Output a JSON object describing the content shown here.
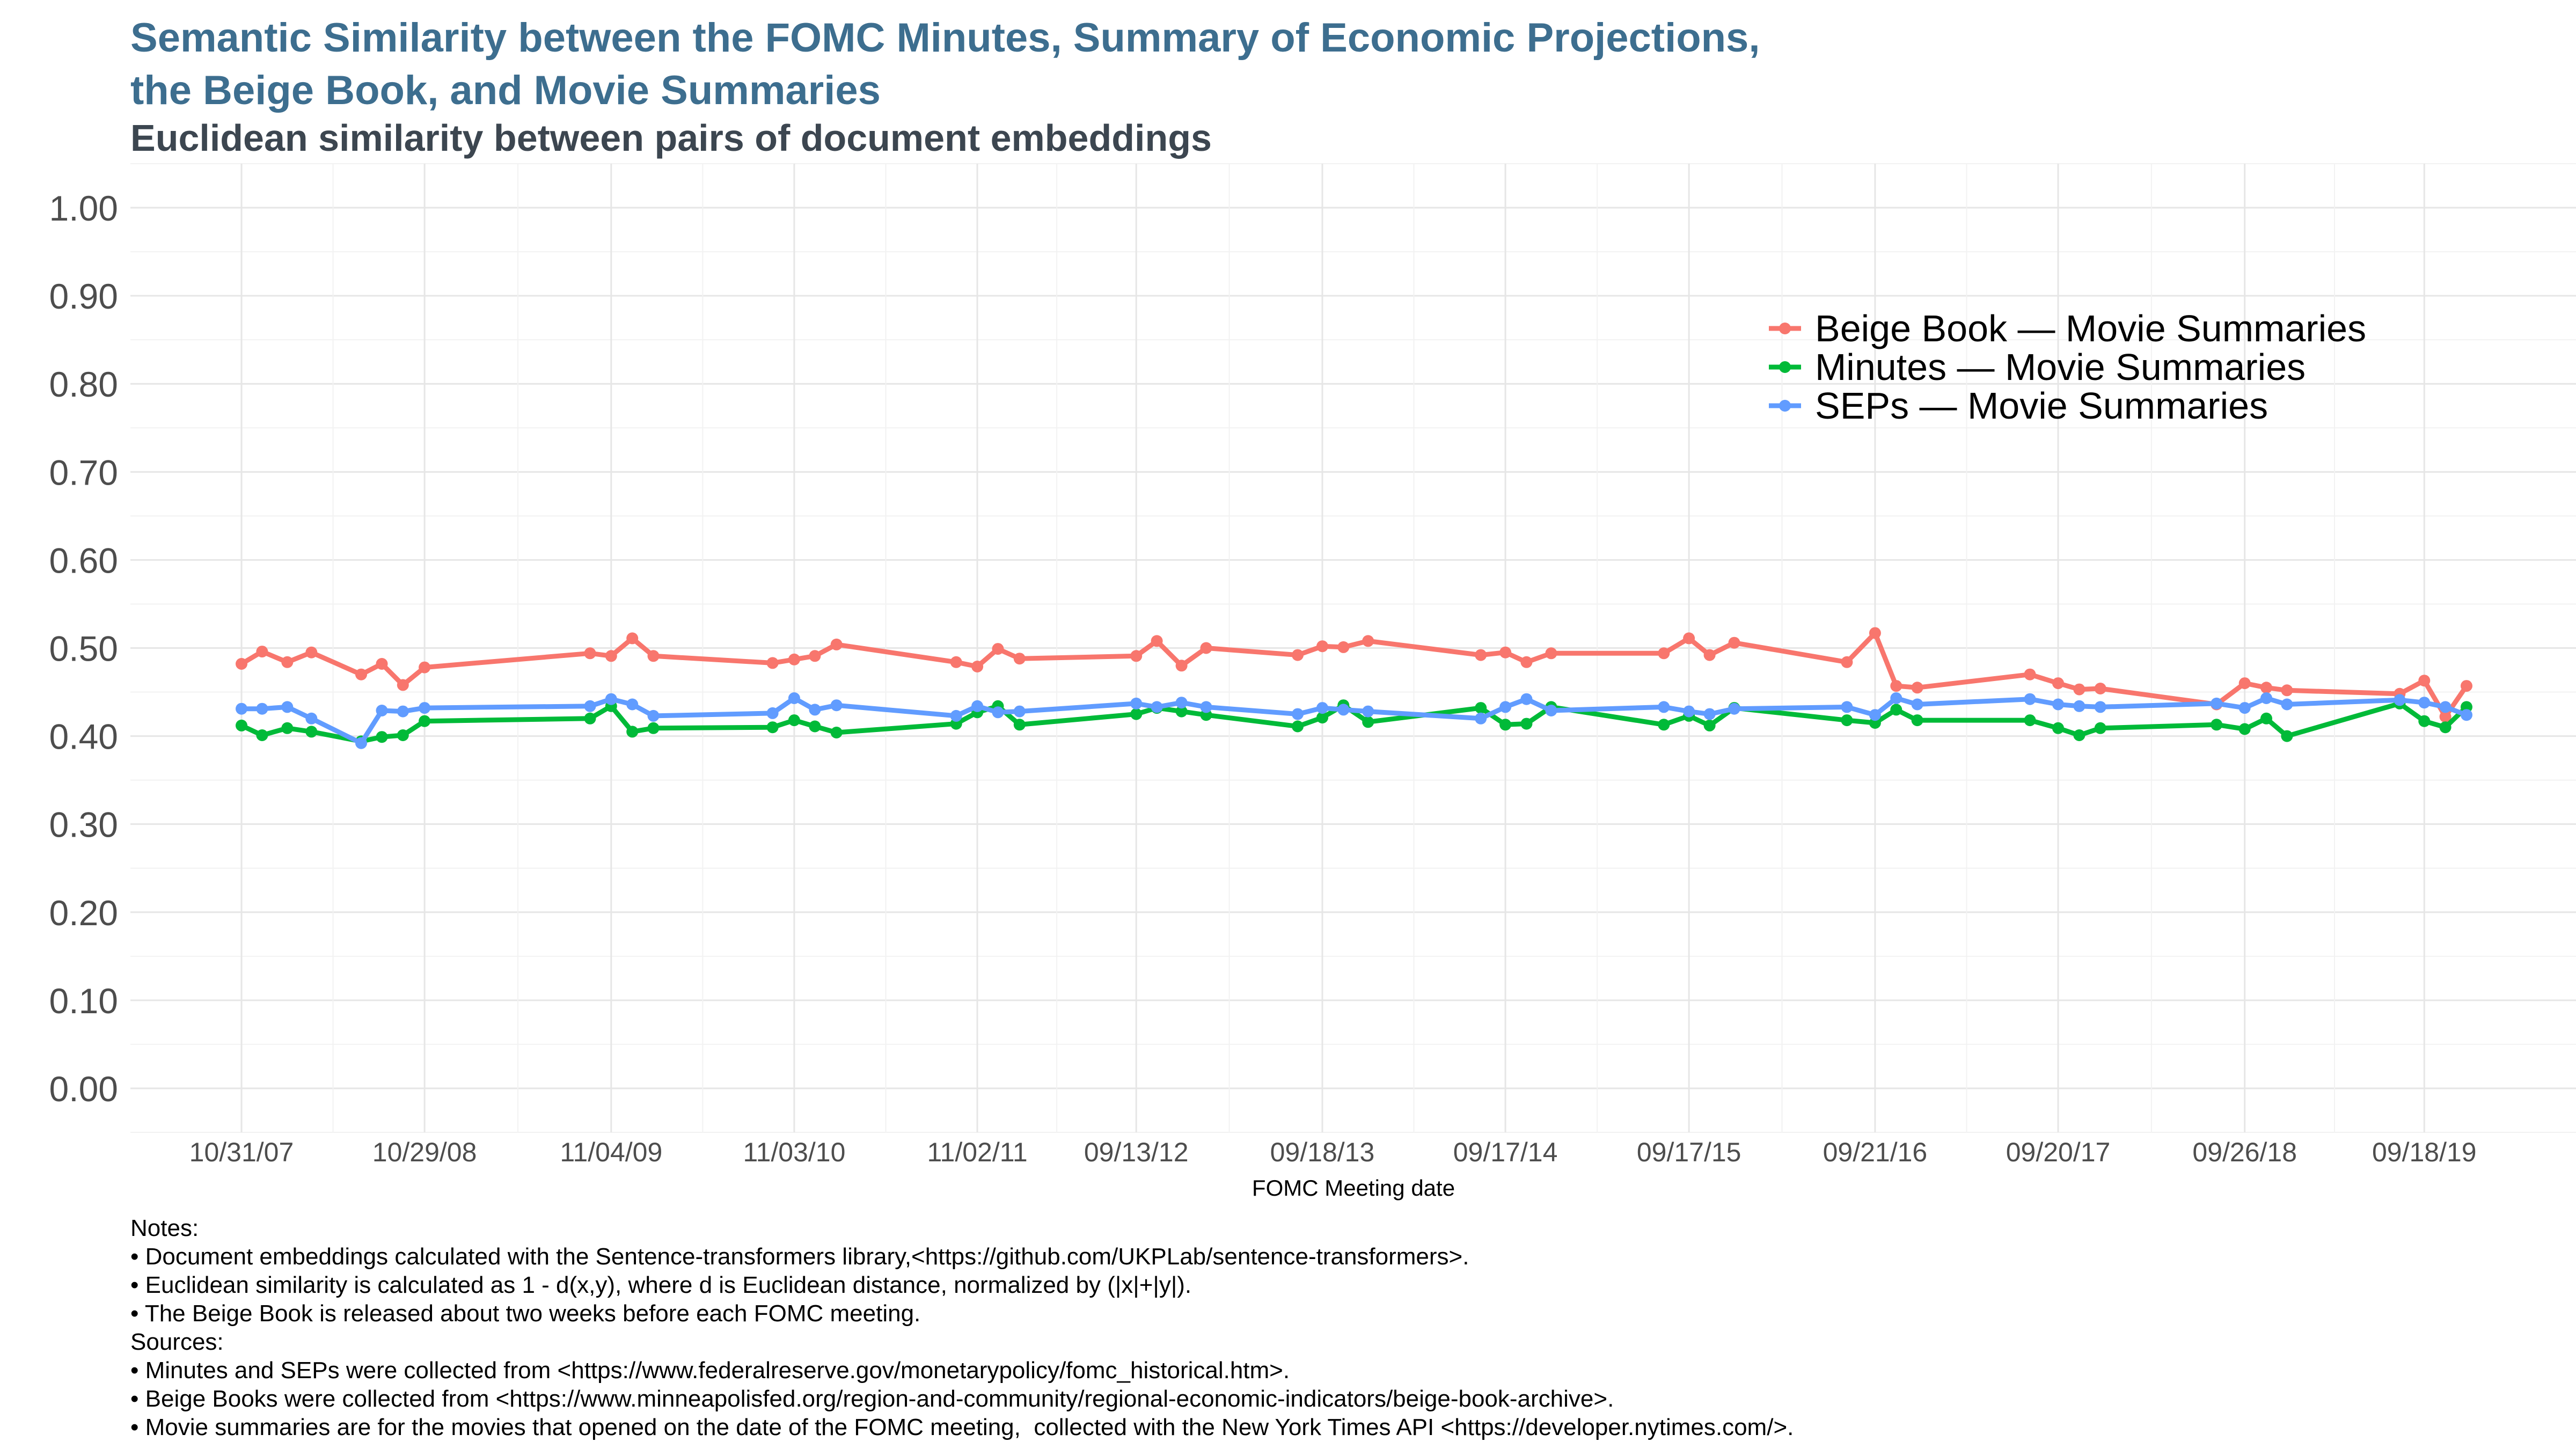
{
  "title_lines": [
    "Semantic Similarity between the FOMC Minutes, Summary of Economic Projections,",
    "the Beige Book, and Movie Summaries"
  ],
  "subtitle": "Euclidean similarity between pairs of document embeddings",
  "chart_data": {
    "type": "line",
    "xlabel": "FOMC Meeting date",
    "ylabel": "",
    "ylim": [
      -0.05,
      1.05
    ],
    "y_ticks": [
      "0.00",
      "0.10",
      "0.20",
      "0.30",
      "0.40",
      "0.50",
      "0.60",
      "0.70",
      "0.80",
      "0.90",
      "1.00"
    ],
    "x_tick_labels": [
      "10/31/07",
      "10/29/08",
      "11/04/09",
      "11/03/10",
      "11/02/11",
      "09/13/12",
      "09/18/13",
      "09/17/14",
      "09/17/15",
      "09/21/16",
      "09/20/17",
      "09/26/18",
      "09/18/19"
    ],
    "legend_position": "top-right",
    "grid": true,
    "series": [
      {
        "name": "Beige Book — Movie Summaries",
        "color": "#f8766d",
        "points": [
          [
            "2007-10-31",
            0.482
          ],
          [
            "2007-12-11",
            0.496
          ],
          [
            "2008-01-30",
            0.484
          ],
          [
            "2008-03-18",
            0.495
          ],
          [
            "2008-06-25",
            0.47
          ],
          [
            "2008-08-05",
            0.482
          ],
          [
            "2008-09-16",
            0.458
          ],
          [
            "2008-10-29",
            0.478
          ],
          [
            "2009-09-23",
            0.494
          ],
          [
            "2009-11-04",
            0.491
          ],
          [
            "2009-12-16",
            0.511
          ],
          [
            "2010-01-27",
            0.491
          ],
          [
            "2010-09-21",
            0.483
          ],
          [
            "2010-11-03",
            0.487
          ],
          [
            "2010-12-14",
            0.491
          ],
          [
            "2011-01-26",
            0.504
          ],
          [
            "2011-09-21",
            0.484
          ],
          [
            "2011-11-02",
            0.479
          ],
          [
            "2011-12-13",
            0.499
          ],
          [
            "2012-01-25",
            0.488
          ],
          [
            "2012-09-13",
            0.491
          ],
          [
            "2012-10-24",
            0.508
          ],
          [
            "2012-12-12",
            0.48
          ],
          [
            "2013-01-30",
            0.5
          ],
          [
            "2013-07-31",
            0.492
          ],
          [
            "2013-09-18",
            0.502
          ],
          [
            "2013-10-30",
            0.501
          ],
          [
            "2013-12-18",
            0.508
          ],
          [
            "2014-07-30",
            0.492
          ],
          [
            "2014-09-17",
            0.495
          ],
          [
            "2014-10-29",
            0.484
          ],
          [
            "2014-12-17",
            0.494
          ],
          [
            "2015-07-29",
            0.494
          ],
          [
            "2015-09-17",
            0.511
          ],
          [
            "2015-10-28",
            0.492
          ],
          [
            "2015-12-16",
            0.506
          ],
          [
            "2016-07-27",
            0.484
          ],
          [
            "2016-09-21",
            0.517
          ],
          [
            "2016-11-02",
            0.457
          ],
          [
            "2016-12-14",
            0.455
          ],
          [
            "2017-07-26",
            0.47
          ],
          [
            "2017-09-20",
            0.46
          ],
          [
            "2017-11-01",
            0.453
          ],
          [
            "2017-12-13",
            0.454
          ],
          [
            "2018-08-01",
            0.436
          ],
          [
            "2018-09-26",
            0.46
          ],
          [
            "2018-11-08",
            0.455
          ],
          [
            "2018-12-19",
            0.452
          ],
          [
            "2019-07-31",
            0.448
          ],
          [
            "2019-09-18",
            0.463
          ],
          [
            "2019-10-30",
            0.422
          ],
          [
            "2019-12-11",
            0.457
          ]
        ]
      },
      {
        "name": "Minutes — Movie Summaries",
        "color": "#00ba38",
        "points": [
          [
            "2007-10-31",
            0.412
          ],
          [
            "2007-12-11",
            0.401
          ],
          [
            "2008-01-30",
            0.409
          ],
          [
            "2008-03-18",
            0.405
          ],
          [
            "2008-06-25",
            0.394
          ],
          [
            "2008-08-05",
            0.399
          ],
          [
            "2008-09-16",
            0.401
          ],
          [
            "2008-10-29",
            0.417
          ],
          [
            "2009-09-23",
            0.42
          ],
          [
            "2009-11-04",
            0.434
          ],
          [
            "2009-12-16",
            0.405
          ],
          [
            "2010-01-27",
            0.409
          ],
          [
            "2010-09-21",
            0.41
          ],
          [
            "2010-11-03",
            0.418
          ],
          [
            "2010-12-14",
            0.411
          ],
          [
            "2011-01-26",
            0.404
          ],
          [
            "2011-09-21",
            0.414
          ],
          [
            "2011-11-02",
            0.427
          ],
          [
            "2011-12-13",
            0.434
          ],
          [
            "2012-01-25",
            0.413
          ],
          [
            "2012-09-13",
            0.425
          ],
          [
            "2012-10-24",
            0.432
          ],
          [
            "2012-12-12",
            0.428
          ],
          [
            "2013-01-30",
            0.424
          ],
          [
            "2013-07-31",
            0.411
          ],
          [
            "2013-09-18",
            0.421
          ],
          [
            "2013-10-30",
            0.435
          ],
          [
            "2013-12-18",
            0.416
          ],
          [
            "2014-07-30",
            0.432
          ],
          [
            "2014-09-17",
            0.413
          ],
          [
            "2014-10-29",
            0.414
          ],
          [
            "2014-12-17",
            0.433
          ],
          [
            "2015-07-29",
            0.413
          ],
          [
            "2015-09-17",
            0.423
          ],
          [
            "2015-10-28",
            0.412
          ],
          [
            "2015-12-16",
            0.432
          ],
          [
            "2016-07-27",
            0.418
          ],
          [
            "2016-09-21",
            0.415
          ],
          [
            "2016-11-02",
            0.43
          ],
          [
            "2016-12-14",
            0.418
          ],
          [
            "2017-07-26",
            0.418
          ],
          [
            "2017-09-20",
            0.409
          ],
          [
            "2017-11-01",
            0.401
          ],
          [
            "2017-12-13",
            0.409
          ],
          [
            "2018-08-01",
            0.413
          ],
          [
            "2018-09-26",
            0.408
          ],
          [
            "2018-11-08",
            0.42
          ],
          [
            "2018-12-19",
            0.4
          ],
          [
            "2019-07-31",
            0.437
          ],
          [
            "2019-09-18",
            0.417
          ],
          [
            "2019-10-30",
            0.41
          ],
          [
            "2019-12-11",
            0.433
          ]
        ]
      },
      {
        "name": "SEPs — Movie Summaries",
        "color": "#619cff",
        "points": [
          [
            "2007-10-31",
            0.431
          ],
          [
            "2007-12-11",
            0.431
          ],
          [
            "2008-01-30",
            0.433
          ],
          [
            "2008-03-18",
            0.42
          ],
          [
            "2008-06-25",
            0.392
          ],
          [
            "2008-08-05",
            0.429
          ],
          [
            "2008-09-16",
            0.428
          ],
          [
            "2008-10-29",
            0.432
          ],
          [
            "2009-09-23",
            0.434
          ],
          [
            "2009-11-04",
            0.442
          ],
          [
            "2009-12-16",
            0.436
          ],
          [
            "2010-01-27",
            0.423
          ],
          [
            "2010-09-21",
            0.426
          ],
          [
            "2010-11-03",
            0.443
          ],
          [
            "2010-12-14",
            0.43
          ],
          [
            "2011-01-26",
            0.435
          ],
          [
            "2011-09-21",
            0.423
          ],
          [
            "2011-11-02",
            0.434
          ],
          [
            "2011-12-13",
            0.427
          ],
          [
            "2012-01-25",
            0.428
          ],
          [
            "2012-09-13",
            0.437
          ],
          [
            "2012-10-24",
            0.433
          ],
          [
            "2012-12-12",
            0.438
          ],
          [
            "2013-01-30",
            0.433
          ],
          [
            "2013-07-31",
            0.425
          ],
          [
            "2013-09-18",
            0.432
          ],
          [
            "2013-10-30",
            0.43
          ],
          [
            "2013-12-18",
            0.428
          ],
          [
            "2014-07-30",
            0.42
          ],
          [
            "2014-09-17",
            0.433
          ],
          [
            "2014-10-29",
            0.442
          ],
          [
            "2014-12-17",
            0.429
          ],
          [
            "2015-07-29",
            0.433
          ],
          [
            "2015-09-17",
            0.428
          ],
          [
            "2015-10-28",
            0.425
          ],
          [
            "2015-12-16",
            0.431
          ],
          [
            "2016-07-27",
            0.433
          ],
          [
            "2016-09-21",
            0.424
          ],
          [
            "2016-11-02",
            0.443
          ],
          [
            "2016-12-14",
            0.436
          ],
          [
            "2017-07-26",
            0.442
          ],
          [
            "2017-09-20",
            0.436
          ],
          [
            "2017-11-01",
            0.434
          ],
          [
            "2017-12-13",
            0.433
          ],
          [
            "2018-08-01",
            0.437
          ],
          [
            "2018-09-26",
            0.432
          ],
          [
            "2018-11-08",
            0.443
          ],
          [
            "2018-12-19",
            0.436
          ],
          [
            "2019-07-31",
            0.441
          ],
          [
            "2019-09-18",
            0.438
          ],
          [
            "2019-10-30",
            0.433
          ],
          [
            "2019-12-11",
            0.424
          ]
        ]
      }
    ]
  },
  "notes": [
    "Notes:",
    "• Document embeddings calculated with the Sentence-transformers library,<https://github.com/UKPLab/sentence-transformers>.",
    "• Euclidean similarity is calculated as 1 - d(x,y), where d is Euclidean distance, normalized by (|x|+|y|).",
    "• The Beige Book is released about two weeks before each FOMC meeting.",
    "Sources:",
    "• Minutes and SEPs were collected from <https://www.federalreserve.gov/monetarypolicy/fomc_historical.htm>.",
    "• Beige Books were collected from <https://www.minneapolisfed.org/region-and-community/regional-economic-indicators/beige-book-archive>.",
    "• Movie summaries are for the movies that opened on the date of the FOMC meeting,  collected with the New York Times API <https://developer.nytimes.com/>."
  ]
}
